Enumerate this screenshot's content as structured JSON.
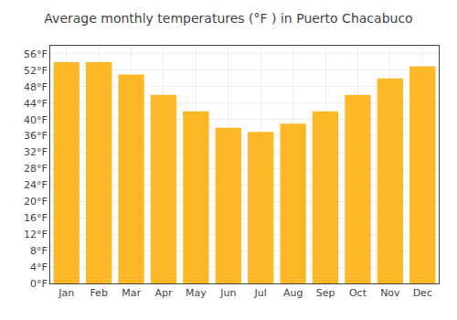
{
  "chart_data": {
    "type": "bar",
    "title": "Average monthly temperatures (°F ) in Puerto Chacabuco",
    "categories": [
      "Jan",
      "Feb",
      "Mar",
      "Apr",
      "May",
      "Jun",
      "Jul",
      "Aug",
      "Sep",
      "Oct",
      "Nov",
      "Dec"
    ],
    "values": [
      54,
      54,
      51,
      46,
      42,
      38,
      37,
      39,
      42,
      46,
      50,
      53
    ],
    "color": "#FDB827",
    "ylim": [
      0,
      58
    ],
    "yticks": [
      {
        "value": 0,
        "label": "0°F"
      },
      {
        "value": 4,
        "label": "4°F"
      },
      {
        "value": 8,
        "label": "8°F"
      },
      {
        "value": 12,
        "label": "12°F"
      },
      {
        "value": 16,
        "label": "16°F"
      },
      {
        "value": 20,
        "label": "20°F"
      },
      {
        "value": 24,
        "label": "24°F"
      },
      {
        "value": 28,
        "label": "28°F"
      },
      {
        "value": 32,
        "label": "32°F"
      },
      {
        "value": 36,
        "label": "36°F"
      },
      {
        "value": 40,
        "label": "40°F"
      },
      {
        "value": 44,
        "label": "44°F"
      },
      {
        "value": 48,
        "label": "48°F"
      },
      {
        "value": 52,
        "label": "52°F"
      },
      {
        "value": 56,
        "label": "56°F"
      }
    ],
    "grid": true
  }
}
